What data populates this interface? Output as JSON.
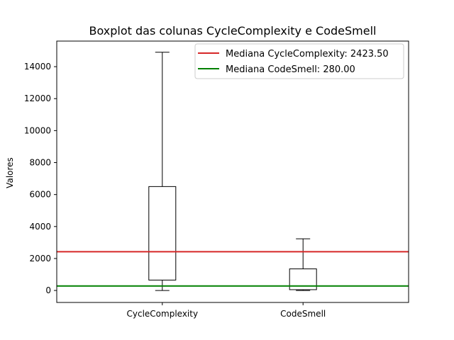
{
  "chart_data": {
    "type": "box",
    "title": "Boxplot das colunas CycleComplexity e CodeSmell",
    "xlabel": "",
    "ylabel": "Valores",
    "ylim": [
      -750,
      15600
    ],
    "yticks": [
      0,
      2000,
      4000,
      6000,
      8000,
      10000,
      12000,
      14000
    ],
    "yticklabels": [
      "0",
      "2000",
      "4000",
      "6000",
      "8000",
      "10000",
      "12000",
      "14000"
    ],
    "categories": [
      "CycleComplexity",
      "CodeSmell"
    ],
    "boxes": [
      {
        "name": "CycleComplexity",
        "whisker_low": 0,
        "q1": 650,
        "median": 2423.5,
        "q3": 6500,
        "whisker_high": 14900
      },
      {
        "name": "CodeSmell",
        "whisker_low": 0,
        "q1": 50,
        "median": 280,
        "q3": 1350,
        "whisker_high": 3230
      }
    ],
    "reference_lines": [
      {
        "label": "Mediana CycleComplexity: 2423.50",
        "y": 2423.5,
        "color": "#d62728"
      },
      {
        "label": "Mediana CodeSmell: 280.00",
        "y": 280,
        "color": "#008000"
      }
    ],
    "median_color": "#ff7f0e",
    "legend_position": "upper-right",
    "grid": false
  }
}
